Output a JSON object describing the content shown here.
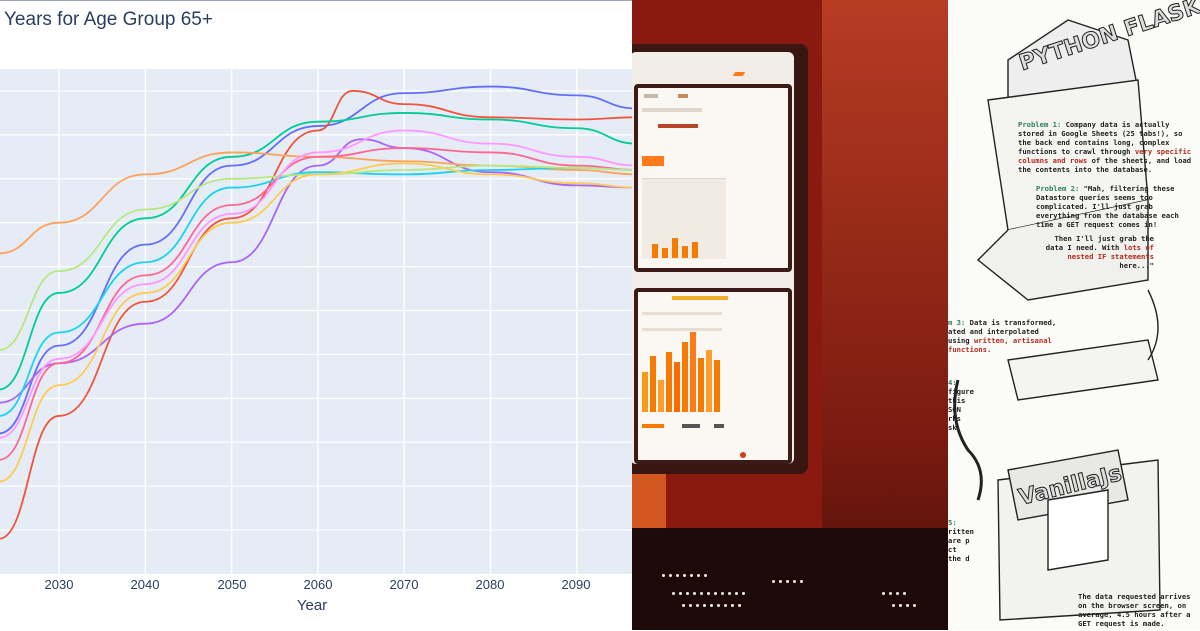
{
  "left_chart": {
    "title": "Years for Age Group 65+",
    "xlabel": "Year",
    "x_ticks": [
      "2030",
      "2040",
      "2050",
      "2060",
      "2070",
      "2080",
      "2090"
    ]
  },
  "chart_data": {
    "type": "line",
    "title": "Years for Age Group 65+",
    "xlabel": "Year",
    "ylabel": "",
    "grid": true,
    "series": [
      {
        "color": "#636efa",
        "x": [
          2023,
          2030,
          2040,
          2050,
          2060,
          2070,
          2080,
          2090,
          2097
        ],
        "y": [
          0.2,
          2.2,
          4.5,
          6.3,
          7.2,
          7.95,
          8.1,
          7.9,
          7.6
        ]
      },
      {
        "color": "#ef553b",
        "x": [
          2023,
          2030,
          2040,
          2050,
          2060,
          2064,
          2070,
          2080,
          2090,
          2097
        ],
        "y": [
          -2.2,
          0.6,
          3.2,
          5.1,
          7.1,
          8.0,
          7.7,
          7.4,
          7.35,
          7.4
        ]
      },
      {
        "color": "#00cc96",
        "x": [
          2023,
          2030,
          2040,
          2050,
          2060,
          2070,
          2080,
          2090,
          2097
        ],
        "y": [
          1.2,
          3.4,
          5.1,
          6.5,
          7.3,
          7.5,
          7.35,
          7.15,
          6.8
        ]
      },
      {
        "color": "#ab63fa",
        "x": [
          2023,
          2030,
          2040,
          2050,
          2060,
          2065,
          2070,
          2080,
          2090,
          2097
        ],
        "y": [
          0.9,
          1.8,
          2.7,
          4.1,
          6.3,
          6.9,
          6.7,
          6.15,
          5.85,
          5.8
        ]
      },
      {
        "color": "#ffa15a",
        "x": [
          2023,
          2030,
          2040,
          2050,
          2060,
          2070,
          2080,
          2090,
          2097
        ],
        "y": [
          4.3,
          5.0,
          6.1,
          6.6,
          6.5,
          6.4,
          6.3,
          6.2,
          6.1
        ]
      },
      {
        "color": "#19d3f3",
        "x": [
          2023,
          2030,
          2040,
          2050,
          2060,
          2070,
          2080,
          2090,
          2097
        ],
        "y": [
          0.6,
          2.5,
          4.1,
          5.8,
          6.15,
          6.1,
          6.2,
          6.25,
          6.2
        ]
      },
      {
        "color": "#ff6692",
        "x": [
          2023,
          2030,
          2040,
          2050,
          2060,
          2070,
          2080,
          2090,
          2097
        ],
        "y": [
          -0.4,
          1.8,
          3.8,
          5.4,
          6.5,
          6.7,
          6.6,
          6.3,
          6.2
        ]
      },
      {
        "color": "#b6e880",
        "x": [
          2023,
          2030,
          2040,
          2050,
          2060,
          2070,
          2080,
          2090,
          2097
        ],
        "y": [
          2.1,
          3.9,
          5.3,
          6.0,
          6.1,
          6.2,
          6.3,
          6.25,
          6.2
        ]
      },
      {
        "color": "#ff97ff",
        "x": [
          2023,
          2030,
          2040,
          2050,
          2060,
          2070,
          2080,
          2090,
          2097
        ],
        "y": [
          0.1,
          1.9,
          3.6,
          5.2,
          6.6,
          7.1,
          6.8,
          6.5,
          6.3
        ]
      },
      {
        "color": "#fecb52",
        "x": [
          2023,
          2030,
          2040,
          2050,
          2060,
          2070,
          2080,
          2090,
          2097
        ],
        "y": [
          -0.9,
          1.3,
          3.4,
          5.0,
          6.1,
          6.35,
          6.1,
          5.9,
          5.8
        ]
      }
    ]
  },
  "middle_photo": {
    "colors": {
      "bg": "#8a1a10",
      "accent": "#ff7a1a",
      "bar": "#f57c00",
      "bezel": "#3a1612"
    }
  },
  "right_comic": {
    "logo": "PYTHON FLASK",
    "logo2": "VanillaJs",
    "p1_label": "Problem 1:",
    "p1_text_a": "Company data is actually stored in Google Sheets (25 tabs!), so the back end contains long, complex functions to crawl through",
    "p1_text_red": "very specific columns and rows",
    "p1_text_b": "of the sheets, and load the contents into the database.",
    "p2_label": "Problem 2:",
    "p2_text": "\"Mah, filtering these Datastore queries seems too complicated. I'll just grab everything from the database each time a GET request comes in!",
    "p2_text_b": "Then I'll just grab the data I need. With",
    "p2_red": "lots of nested IF statements",
    "p2_text_c": "here...\"",
    "p3_label": "m 3:",
    "p3_text": "Data is transformed, ated and interpolated using",
    "p3_red": "written, artisanal functions.",
    "p4_label": "4:",
    "p4_text": "figure this SON rks sk.",
    "p5_label": "5:",
    "p5_text": "ritten are p ct the d",
    "footer": "The data requested arrives on the browser screen, on average, 4.5 hours after a GET request is made."
  }
}
